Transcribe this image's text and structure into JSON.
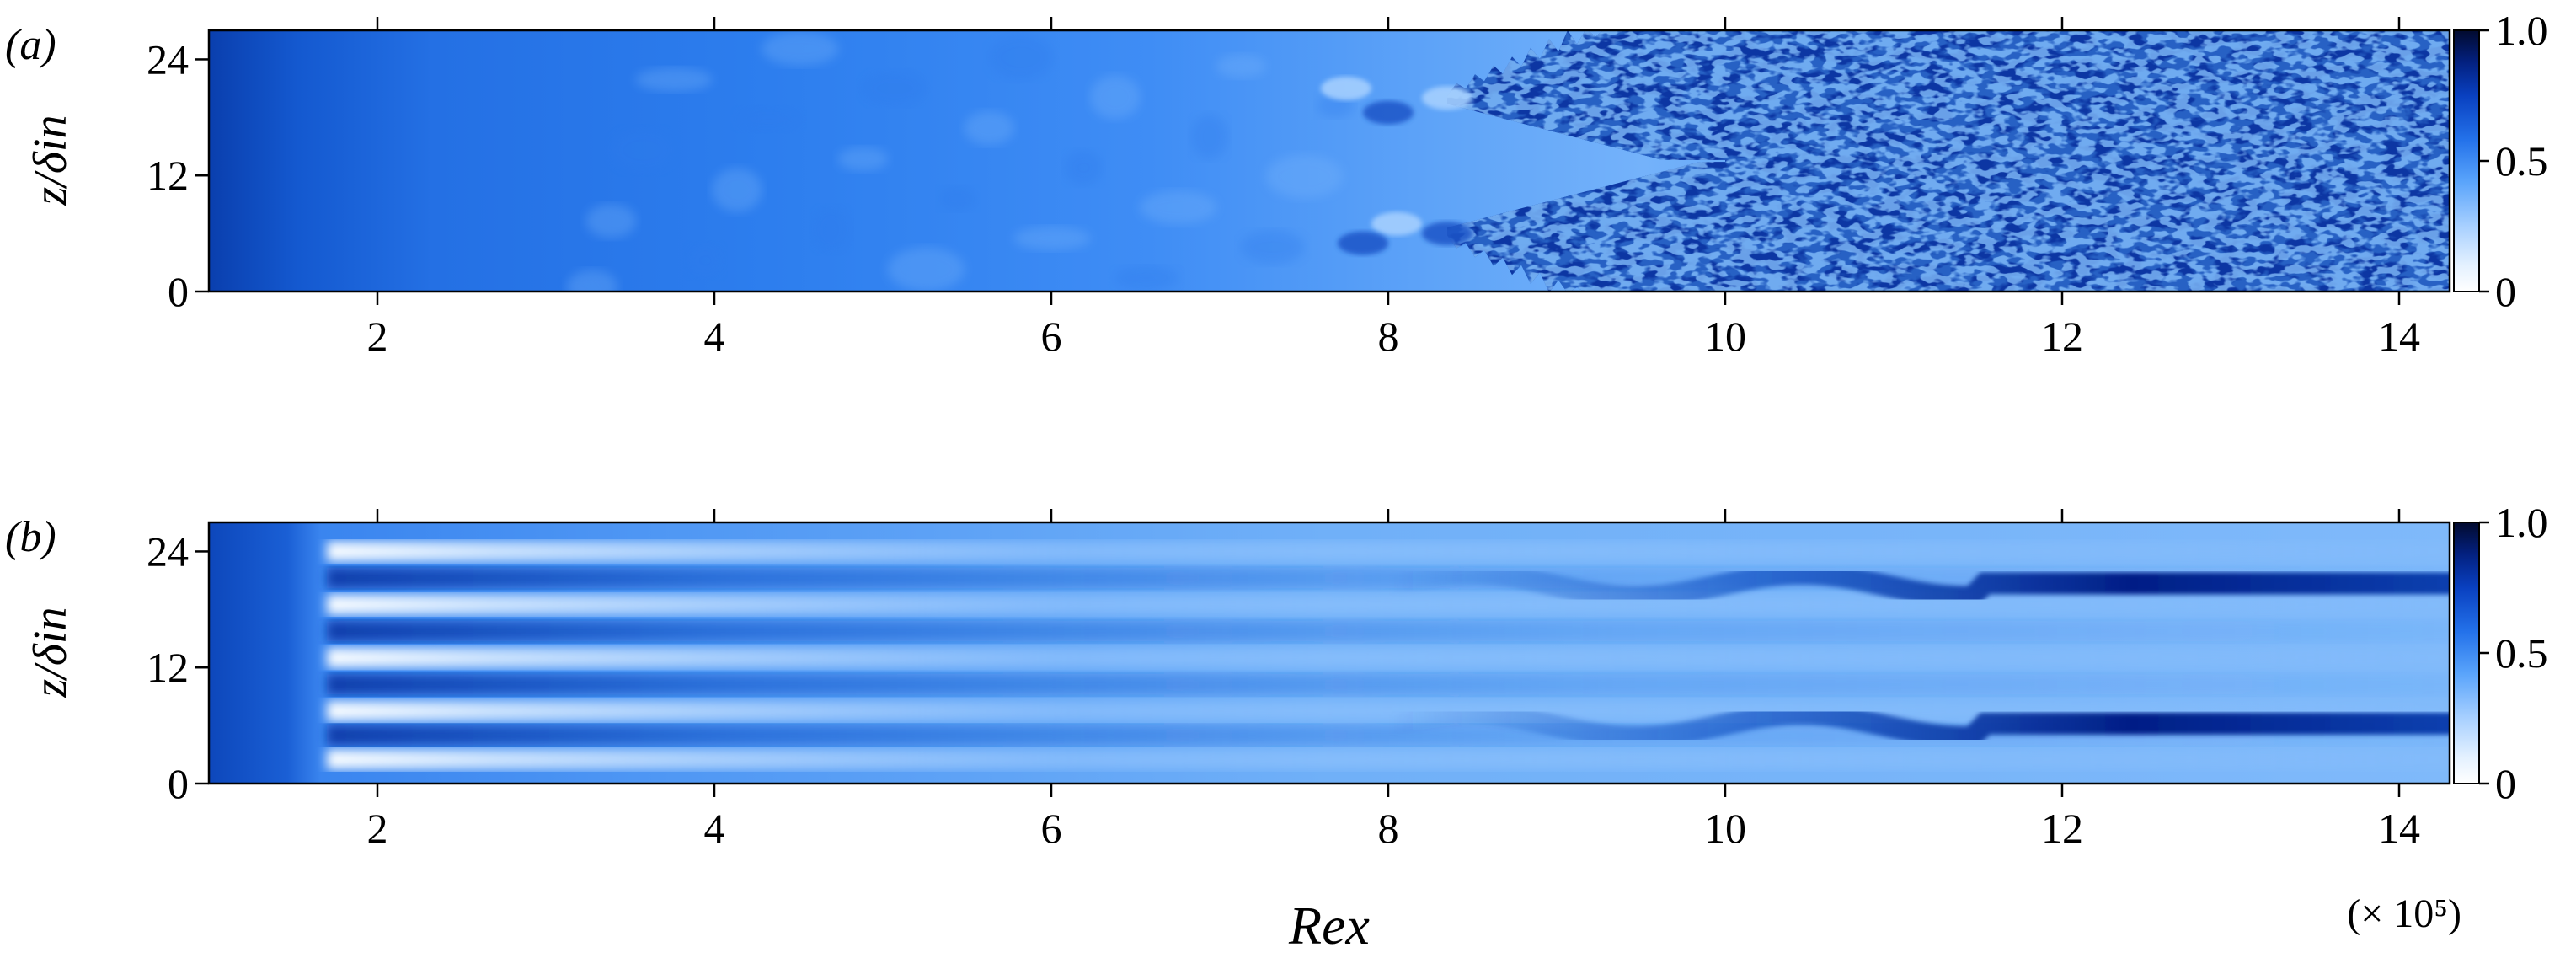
{
  "chart_data": [
    {
      "panel_label": "(a)",
      "type": "heatmap",
      "ylabel": "z/δin",
      "x_ticks": [
        "2",
        "4",
        "6",
        "8",
        "10",
        "12",
        "14"
      ],
      "y_ticks": [
        "0",
        "12",
        "24"
      ],
      "xlim": [
        1,
        14.3
      ],
      "ylim": [
        0,
        27
      ],
      "colorbar": {
        "range": [
          0,
          1
        ],
        "ticks": [
          "0",
          "0.5",
          "1.0"
        ]
      },
      "features": {
        "laminar_region_x": [
          1,
          8
        ],
        "transition_onset_x": 8,
        "spot_centers_z": [
          6,
          20
        ],
        "fully_turbulent_from_x": 10
      }
    },
    {
      "panel_label": "(b)",
      "type": "heatmap",
      "ylabel": "z/δin",
      "xlabel": "Rex",
      "x_ticks": [
        "2",
        "4",
        "6",
        "8",
        "10",
        "12",
        "14"
      ],
      "y_ticks": [
        "0",
        "12",
        "24"
      ],
      "xlim": [
        1,
        14.3
      ],
      "ylim": [
        0,
        27
      ],
      "x_scale_note": "(× 10⁵)",
      "colorbar": {
        "range": [
          0,
          1
        ],
        "ticks": [
          "0",
          "0.5",
          "1.0"
        ]
      },
      "features": {
        "streak_onset_x": 1.7,
        "streak_centers_z": [
          2.5,
          7.5,
          13,
          18.5,
          24
        ],
        "persistent_streaks_z": [
          6,
          20.5
        ]
      }
    }
  ],
  "colors": {
    "colormap": [
      "#ffffff",
      "#eaf4ff",
      "#bcdcff",
      "#79b8ff",
      "#3d8ff2",
      "#1763dd",
      "#0736b4",
      "#021d7a",
      "#020a2e"
    ],
    "axis": "#000000"
  }
}
